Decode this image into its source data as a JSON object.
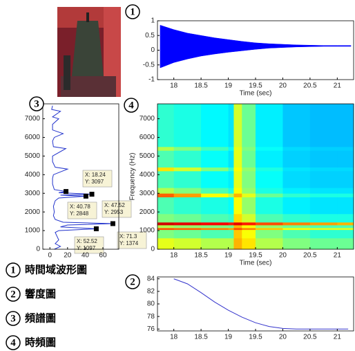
{
  "chart_data": [
    {
      "type": "area",
      "badge": "1",
      "xlabel": "Time (sec)",
      "x": [
        17.75,
        18,
        18.25,
        18.5,
        18.75,
        19,
        19.25,
        19.5,
        19.75,
        20,
        20.25,
        20.5,
        20.75,
        21,
        21.25
      ],
      "high": [
        0.85,
        0.7,
        0.58,
        0.5,
        0.42,
        0.36,
        0.3,
        0.25,
        0.22,
        0.2,
        0.18,
        0.17,
        0.16,
        0.16,
        0.16
      ],
      "low": [
        -0.6,
        -0.42,
        -0.3,
        -0.2,
        -0.13,
        -0.07,
        -0.02,
        0.03,
        0.07,
        0.09,
        0.11,
        0.12,
        0.13,
        0.13,
        0.13
      ],
      "color": "#0000ff",
      "xlim": [
        17.7,
        21.3
      ],
      "xticks": [
        18,
        18.5,
        19,
        19.5,
        20,
        20.5,
        21
      ],
      "ylim": [
        -1,
        1
      ],
      "yticks": [
        -1,
        -0.5,
        0,
        0.5,
        1
      ]
    },
    {
      "type": "line",
      "badge": "2",
      "x": [
        18,
        18.25,
        18.5,
        18.75,
        19,
        19.25,
        19.5,
        19.75,
        20,
        20.25,
        20.5,
        20.75,
        21,
        21.2
      ],
      "values": [
        84,
        83.2,
        81.8,
        80.3,
        79,
        77.9,
        77.0,
        76.4,
        76.1,
        76.0,
        76.0,
        76.0,
        76.0,
        76.0
      ],
      "color": "#3333cc",
      "xlim": [
        17.7,
        21.3
      ],
      "xticks": [
        18,
        18.5,
        19,
        19.5,
        20,
        20.5,
        21
      ],
      "ylim": [
        75.7,
        84.3
      ],
      "yticks": [
        76,
        78,
        80,
        82,
        84
      ]
    },
    {
      "type": "line",
      "orientation": "horizontal",
      "badge": "3",
      "freq": [
        0,
        150,
        300,
        500,
        700,
        900,
        1000,
        1097,
        1200,
        1300,
        1374,
        1450,
        1600,
        1800,
        2000,
        2300,
        2600,
        2750,
        2848,
        2900,
        2953,
        3030,
        3097,
        3200,
        3500,
        3800,
        4000,
        4300,
        4400,
        4700,
        5000,
        5400,
        5500,
        5800,
        6000,
        6200,
        6400,
        6700,
        7000,
        7100,
        7400,
        7500,
        7700
      ],
      "values": [
        5,
        12,
        6,
        10,
        8,
        6,
        10,
        52.52,
        12,
        20,
        71.3,
        15,
        6,
        4,
        5,
        4,
        6,
        10,
        40.78,
        12,
        47.52,
        10,
        18.24,
        5,
        3,
        3,
        4,
        20,
        6,
        3,
        3,
        18,
        4,
        3,
        5,
        15,
        3,
        3,
        10,
        3,
        12,
        2,
        3
      ],
      "color": "#2233cc",
      "annotations": [
        {
          "x": 18.24,
          "y": 3097,
          "label_x": "X: 18.24",
          "label_y": "Y: 3097"
        },
        {
          "x": 40.78,
          "y": 2848,
          "label_x": "X: 40.78",
          "label_y": "Y: 2848"
        },
        {
          "x": 47.52,
          "y": 2953,
          "label_x": "X: 47.52",
          "label_y": "Y: 2953"
        },
        {
          "x": 52.52,
          "y": 1097,
          "label_x": "X: 52.52",
          "label_y": "Y: 1097"
        },
        {
          "x": 71.3,
          "y": 1374,
          "label_x": "X: 71.3",
          "label_y": "Y: 1374"
        }
      ],
      "xlim": [
        -8,
        78
      ],
      "xticks": [
        0,
        20,
        40,
        60
      ],
      "ylim": [
        0,
        7800
      ],
      "yticks": [
        0,
        1000,
        2000,
        3000,
        4000,
        5000,
        6000,
        7000
      ]
    },
    {
      "type": "heatmap",
      "badge": "4",
      "xlabel": "Time (sec)",
      "ylabel": "Frequency (Hz)",
      "time_edges": [
        17.7,
        18.0,
        18.5,
        19.0,
        19.1,
        19.25,
        19.5,
        20.0,
        20.5,
        21.0,
        21.3
      ],
      "freq_edges": [
        0,
        600,
        1050,
        1150,
        1300,
        1450,
        1900,
        2800,
        3000,
        3300,
        4200,
        4400,
        5300,
        5500,
        6500,
        7800
      ],
      "zlim": [
        0,
        1
      ],
      "z": [
        [
          0.6,
          0.58,
          0.55,
          0.55,
          0.7,
          0.65,
          0.55,
          0.5,
          0.48,
          0.48
        ],
        [
          0.5,
          0.48,
          0.45,
          0.45,
          0.68,
          0.62,
          0.5,
          0.45,
          0.42,
          0.42
        ],
        [
          0.8,
          0.78,
          0.75,
          0.72,
          0.8,
          0.75,
          0.68,
          0.62,
          0.6,
          0.6
        ],
        [
          0.55,
          0.52,
          0.5,
          0.48,
          0.7,
          0.62,
          0.52,
          0.48,
          0.45,
          0.45
        ],
        [
          0.92,
          0.9,
          0.88,
          0.85,
          0.9,
          0.85,
          0.8,
          0.75,
          0.72,
          0.7
        ],
        [
          0.5,
          0.48,
          0.45,
          0.43,
          0.66,
          0.58,
          0.45,
          0.42,
          0.4,
          0.4
        ],
        [
          0.45,
          0.42,
          0.4,
          0.38,
          0.62,
          0.52,
          0.4,
          0.36,
          0.35,
          0.35
        ],
        [
          0.78,
          0.72,
          0.62,
          0.55,
          0.7,
          0.6,
          0.48,
          0.42,
          0.4,
          0.4
        ],
        [
          0.55,
          0.5,
          0.45,
          0.4,
          0.62,
          0.52,
          0.4,
          0.36,
          0.35,
          0.35
        ],
        [
          0.45,
          0.42,
          0.38,
          0.36,
          0.6,
          0.5,
          0.38,
          0.34,
          0.33,
          0.33
        ],
        [
          0.65,
          0.58,
          0.5,
          0.42,
          0.62,
          0.52,
          0.4,
          0.35,
          0.34,
          0.34
        ],
        [
          0.45,
          0.42,
          0.38,
          0.35,
          0.6,
          0.48,
          0.36,
          0.33,
          0.32,
          0.32
        ],
        [
          0.55,
          0.5,
          0.44,
          0.38,
          0.6,
          0.5,
          0.38,
          0.34,
          0.33,
          0.33
        ],
        [
          0.42,
          0.4,
          0.37,
          0.35,
          0.58,
          0.48,
          0.36,
          0.32,
          0.31,
          0.31
        ],
        [
          0.42,
          0.4,
          0.37,
          0.35,
          0.58,
          0.48,
          0.36,
          0.32,
          0.31,
          0.31
        ]
      ],
      "xlim": [
        17.7,
        21.3
      ],
      "xticks": [
        18,
        18.5,
        19,
        19.5,
        20,
        20.5,
        21
      ],
      "ylim": [
        0,
        7800
      ],
      "yticks": [
        0,
        1000,
        2000,
        3000,
        4000,
        5000,
        6000,
        7000
      ]
    }
  ],
  "legend_items": [
    {
      "badge": "1",
      "label": "時間域波形圖"
    },
    {
      "badge": "2",
      "label": "響度圖"
    },
    {
      "badge": "3",
      "label": "頻譜圖"
    },
    {
      "badge": "4",
      "label": "時頻圖"
    }
  ]
}
